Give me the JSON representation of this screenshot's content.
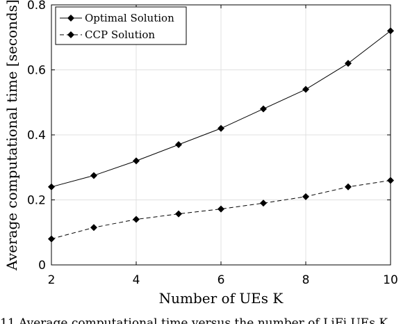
{
  "chart_data": {
    "type": "line",
    "xlabel": "Number of UEs K",
    "ylabel": "Average computational time [seconds]",
    "x": [
      2,
      3,
      4,
      5,
      6,
      7,
      8,
      9,
      10
    ],
    "xticks": [
      "2",
      "4",
      "6",
      "8",
      "10"
    ],
    "yticks": [
      "0",
      "0.2",
      "0.4",
      "0.6",
      "0.8"
    ],
    "xlim": [
      2,
      10
    ],
    "ylim": [
      0,
      0.8
    ],
    "grid": true,
    "legend_position": "top-left",
    "series": [
      {
        "name": "Optimal Solution",
        "values": [
          0.24,
          0.275,
          0.32,
          0.37,
          0.42,
          0.48,
          0.54,
          0.62,
          0.72
        ],
        "style": "solid",
        "marker": "diamond",
        "color": "#000000"
      },
      {
        "name": "CCP Solution",
        "values": [
          0.08,
          0.115,
          0.14,
          0.157,
          0.172,
          0.19,
          0.21,
          0.24,
          0.26
        ],
        "style": "dashed",
        "marker": "diamond",
        "color": "#000000"
      }
    ]
  },
  "caption": "11  Average computational time versus the number of LiFi UEs  K"
}
